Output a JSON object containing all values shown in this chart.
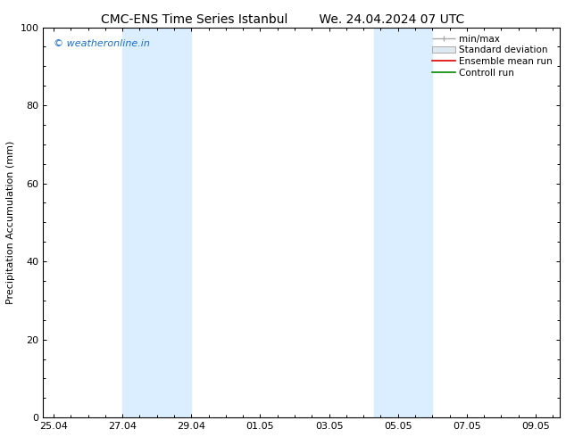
{
  "title_left": "CMC-ENS Time Series Istanbul",
  "title_right": "We. 24.04.2024 07 UTC",
  "ylabel": "Precipitation Accumulation (mm)",
  "ylim": [
    0,
    100
  ],
  "yticks": [
    0,
    20,
    40,
    60,
    80,
    100
  ],
  "background_color": "#ffffff",
  "plot_bg_color": "#ffffff",
  "watermark": "© weatheronline.in",
  "watermark_color": "#1a6ec4",
  "band_color": "#daeeff",
  "band1_x0": 2.0,
  "band1_x1": 4.0,
  "band2_x0": 9.3,
  "band2_x1": 11.0,
  "x_date_labels": [
    "25.04",
    "27.04",
    "29.04",
    "01.05",
    "03.05",
    "05.05",
    "07.05",
    "09.05"
  ],
  "x_tick_positions": [
    0.0,
    2.0,
    4.0,
    6.0,
    8.0,
    10.0,
    12.0,
    14.0
  ],
  "xlim": [
    -0.3,
    14.7
  ],
  "title_fontsize": 10,
  "label_fontsize": 8,
  "tick_fontsize": 8,
  "watermark_fontsize": 8,
  "legend_fontsize": 7.5,
  "minmax_color": "#aaaaaa",
  "stddev_color": "#cccccc",
  "ensemble_color": "#dd0000",
  "control_color": "#008800"
}
